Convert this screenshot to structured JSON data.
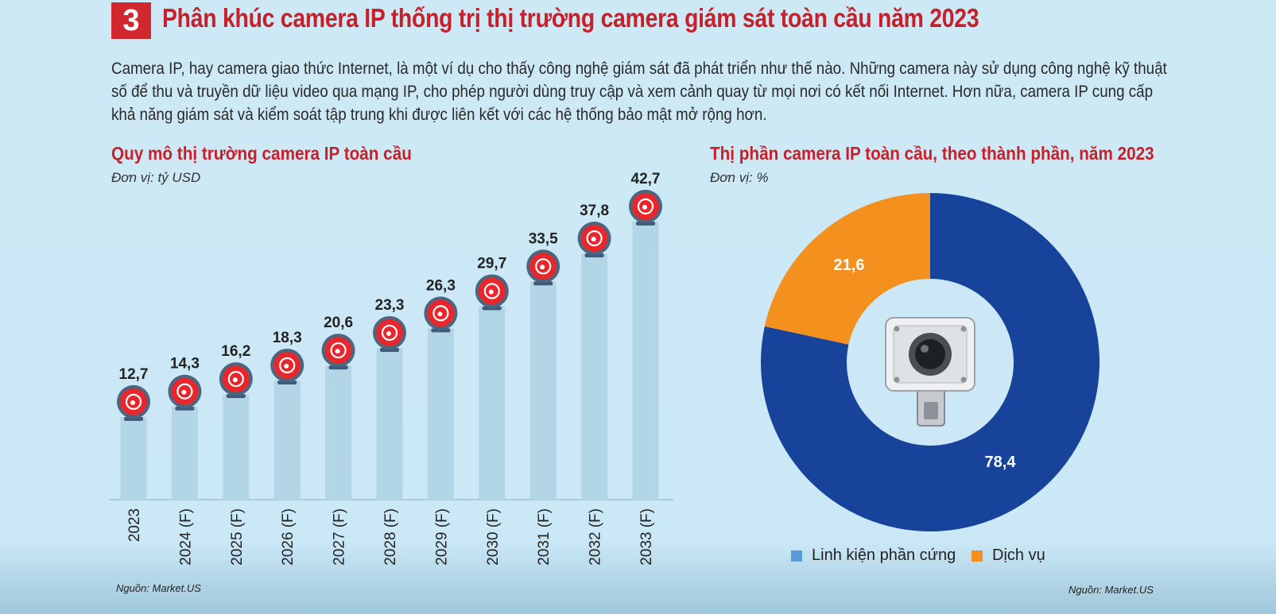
{
  "header": {
    "number": "3",
    "title": "Phân khúc camera IP thống trị thị trường camera giám sát toàn cầu năm 2023"
  },
  "intro": "Camera IP, hay camera giao thức Internet, là một ví dụ cho thấy công nghệ giám sát đã phát triển như thế nào. Những camera này sử dụng công nghệ kỹ thuật số để thu và truyền dữ liệu video qua mạng IP, cho phép người dùng truy cập và xem cảnh quay từ mọi nơi có kết nối Internet. Hơn nữa, camera IP cung cấp khả năng giám sát và kiểm soát tập trung khi được liên kết với các hệ thống bảo mật mở rộng hơn.",
  "left_panel": {
    "title": "Quy mô thị trường camera IP toàn cầu",
    "unit": "Đơn vị: tỷ USD",
    "source": "Nguồn: Market.US"
  },
  "right_panel": {
    "title": "Thị phần camera IP toàn cầu, theo thành phần, năm 2023",
    "unit": "Đơn vị: %",
    "source": "Nguồn: Market.US"
  },
  "colors": {
    "accent": "#c8202a",
    "bar": "#b3d6e6",
    "marker": "#e8262b",
    "hardware": "#17449a",
    "service": "#f4911e",
    "legend_hardware": "#5b9bd5"
  },
  "chart_data": [
    {
      "type": "bar",
      "title": "Quy mô thị trường camera IP toàn cầu",
      "ylabel": "",
      "xlabel": "",
      "categories": [
        "2023",
        "2024 (F)",
        "2025 (F)",
        "2026 (F)",
        "2027 (F)",
        "2028 (F)",
        "2029 (F)",
        "2030 (F)",
        "2031 (F)",
        "2032 (F)",
        "2033 (F)"
      ],
      "values": [
        12.7,
        14.3,
        16.2,
        18.3,
        20.6,
        23.3,
        26.3,
        29.7,
        33.5,
        37.8,
        42.7
      ],
      "value_labels": [
        "12,7",
        "14,3",
        "16,2",
        "18,3",
        "20,6",
        "23,3",
        "26,3",
        "29,7",
        "33,5",
        "37,8",
        "42,7"
      ],
      "grid": false
    },
    {
      "type": "pie",
      "title": "Thị phần camera IP toàn cầu, theo thành phần, năm 2023",
      "donut": true,
      "slices": [
        {
          "name": "Linh kiện phần cứng",
          "value": 78.4,
          "label": "78,4"
        },
        {
          "name": "Dịch vụ",
          "value": 21.6,
          "label": "21,6"
        }
      ],
      "legend": "bottom"
    }
  ]
}
